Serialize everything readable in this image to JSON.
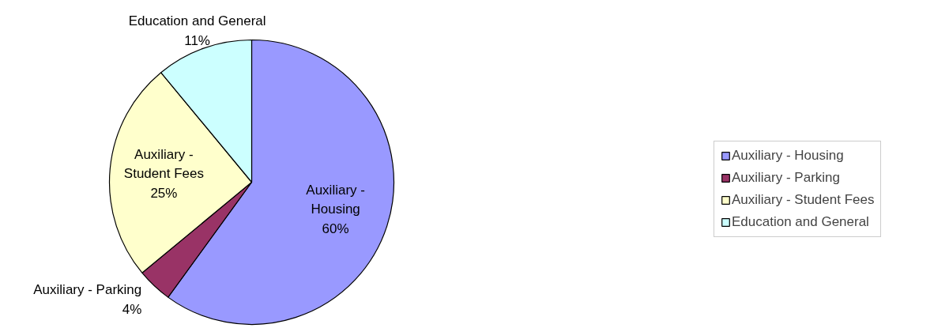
{
  "chart_data": {
    "type": "pie",
    "categories": [
      "Auxiliary - Housing",
      "Auxiliary - Parking",
      "Auxiliary - Student Fees",
      "Education and General"
    ],
    "values": [
      60,
      4,
      25,
      11
    ],
    "colors": [
      "#9999ff",
      "#993366",
      "#ffffcc",
      "#ccffff"
    ],
    "value_labels": [
      "60%",
      "4%",
      "25%",
      "11%"
    ],
    "legend": "right"
  }
}
